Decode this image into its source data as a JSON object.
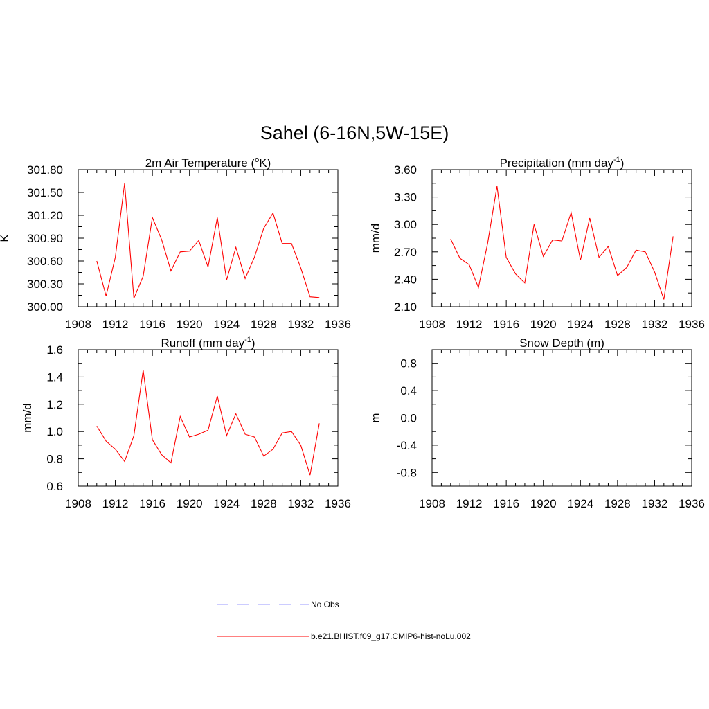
{
  "figure": {
    "title": "Sahel (6-16N,5W-15E)"
  },
  "chart_data": [
    {
      "type": "line",
      "panel": "top-left",
      "title": "2m Air Temperature",
      "title_unit_html": "(<tspan>o</tspan>K)",
      "title_parts": {
        "main": "2m Air Temperature (",
        "sup": "o",
        "end": "K)"
      },
      "ylabel": "K",
      "xlim": [
        1908,
        1936
      ],
      "ylim": [
        300.0,
        301.8
      ],
      "x_ticks": [
        1908,
        1912,
        1916,
        1920,
        1924,
        1928,
        1932,
        1936
      ],
      "y_ticks": [
        "300.00",
        "300.30",
        "300.60",
        "300.90",
        "301.20",
        "301.50",
        "301.80"
      ],
      "y_tick_values": [
        300.0,
        300.3,
        300.6,
        300.9,
        301.2,
        301.5,
        301.8
      ],
      "series": [
        {
          "name": "b.e21.BHIST.f09_g17.CMIP6-hist-noLu.002",
          "x": [
            1910,
            1911,
            1912,
            1913,
            1914,
            1915,
            1916,
            1917,
            1918,
            1919,
            1920,
            1921,
            1922,
            1923,
            1924,
            1925,
            1926,
            1927,
            1928,
            1929,
            1930,
            1931,
            1932,
            1933,
            1934
          ],
          "y": [
            300.6,
            300.14,
            300.65,
            301.62,
            300.11,
            300.4,
            301.17,
            300.88,
            300.47,
            300.72,
            300.73,
            300.87,
            300.52,
            301.17,
            300.35,
            300.78,
            300.37,
            300.65,
            301.03,
            301.23,
            300.83,
            300.83,
            300.51,
            300.13,
            300.12
          ]
        }
      ]
    },
    {
      "type": "line",
      "panel": "top-right",
      "title_parts": {
        "main": "Precipitation (mm day",
        "sup": "-1",
        "end": ")"
      },
      "ylabel": "mm/d",
      "xlim": [
        1908,
        1936
      ],
      "ylim": [
        2.1,
        3.6
      ],
      "x_ticks": [
        1908,
        1912,
        1916,
        1920,
        1924,
        1928,
        1932,
        1936
      ],
      "y_ticks": [
        "2.10",
        "2.40",
        "2.70",
        "3.00",
        "3.30",
        "3.60"
      ],
      "y_tick_values": [
        2.1,
        2.4,
        2.7,
        3.0,
        3.3,
        3.6
      ],
      "series": [
        {
          "name": "b.e21.BHIST.f09_g17.CMIP6-hist-noLu.002",
          "x": [
            1910,
            1911,
            1912,
            1913,
            1914,
            1915,
            1916,
            1917,
            1918,
            1919,
            1920,
            1921,
            1922,
            1923,
            1924,
            1925,
            1926,
            1927,
            1928,
            1929,
            1930,
            1931,
            1932,
            1933,
            1934
          ],
          "y": [
            2.84,
            2.63,
            2.56,
            2.31,
            2.8,
            3.42,
            2.64,
            2.46,
            2.36,
            3.0,
            2.65,
            2.83,
            2.82,
            3.13,
            2.61,
            3.07,
            2.64,
            2.76,
            2.44,
            2.53,
            2.72,
            2.7,
            2.48,
            2.18,
            2.87
          ]
        }
      ]
    },
    {
      "type": "line",
      "panel": "bottom-left",
      "title_parts": {
        "main": "Runoff (mm day",
        "sup": "-1",
        "end": ")"
      },
      "ylabel": "mm/d",
      "xlim": [
        1908,
        1936
      ],
      "ylim": [
        0.6,
        1.6
      ],
      "x_ticks": [
        1908,
        1912,
        1916,
        1920,
        1924,
        1928,
        1932,
        1936
      ],
      "y_ticks": [
        "0.6",
        "0.8",
        "1.0",
        "1.2",
        "1.4",
        "1.6"
      ],
      "y_tick_values": [
        0.6,
        0.8,
        1.0,
        1.2,
        1.4,
        1.6
      ],
      "series": [
        {
          "name": "b.e21.BHIST.f09_g17.CMIP6-hist-noLu.002",
          "x": [
            1910,
            1911,
            1912,
            1913,
            1914,
            1915,
            1916,
            1917,
            1918,
            1919,
            1920,
            1921,
            1922,
            1923,
            1924,
            1925,
            1926,
            1927,
            1928,
            1929,
            1930,
            1931,
            1932,
            1933,
            1934
          ],
          "y": [
            1.04,
            0.93,
            0.87,
            0.78,
            0.97,
            1.45,
            0.94,
            0.83,
            0.77,
            1.11,
            0.96,
            0.98,
            1.01,
            1.26,
            0.97,
            1.13,
            0.98,
            0.96,
            0.82,
            0.87,
            0.99,
            1.0,
            0.9,
            0.68,
            1.06
          ]
        }
      ]
    },
    {
      "type": "line",
      "panel": "bottom-right",
      "title_parts": {
        "main": "Snow Depth (m)",
        "sup": "",
        "end": ""
      },
      "ylabel": "m",
      "xlim": [
        1908,
        1936
      ],
      "ylim": [
        -1.0,
        1.0
      ],
      "x_ticks": [
        1908,
        1912,
        1916,
        1920,
        1924,
        1928,
        1932,
        1936
      ],
      "y_ticks": [
        "-0.8",
        "-0.4",
        "0.0",
        "0.4",
        "0.8"
      ],
      "y_tick_values": [
        -0.8,
        -0.4,
        0.0,
        0.4,
        0.8
      ],
      "series": [
        {
          "name": "b.e21.BHIST.f09_g17.CMIP6-hist-noLu.002",
          "x": [
            1910,
            1911,
            1912,
            1913,
            1914,
            1915,
            1916,
            1917,
            1918,
            1919,
            1920,
            1921,
            1922,
            1923,
            1924,
            1925,
            1926,
            1927,
            1928,
            1929,
            1930,
            1931,
            1932,
            1933,
            1934
          ],
          "y": [
            0,
            0,
            0,
            0,
            0,
            0,
            0,
            0,
            0,
            0,
            0,
            0,
            0,
            0,
            0,
            0,
            0,
            0,
            0,
            0,
            0,
            0,
            0,
            0,
            0
          ]
        }
      ]
    }
  ],
  "legend": {
    "placement": "bottom-center",
    "items": [
      {
        "label": "No Obs",
        "color": "#9999ff",
        "style": "dashed"
      },
      {
        "label": "b.e21.BHIST.f09_g17.CMIP6-hist-noLu.002",
        "color": "#ff0000",
        "style": "solid"
      }
    ]
  },
  "colors": {
    "model_line": "#ff0000",
    "obs_line": "#9999ff",
    "axis": "#000000"
  }
}
